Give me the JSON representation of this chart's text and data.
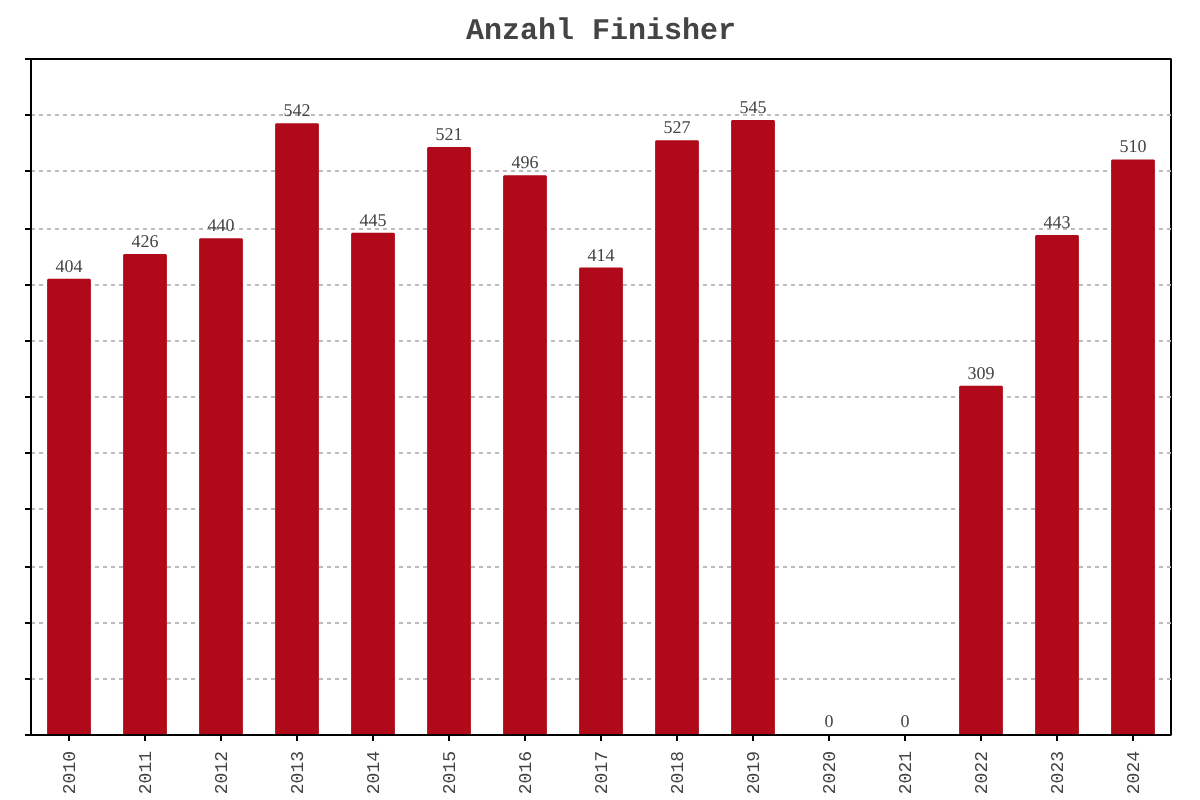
{
  "chart_data": {
    "type": "bar",
    "title": "Anzahl Finisher",
    "categories": [
      "2010",
      "2011",
      "2012",
      "2013",
      "2014",
      "2015",
      "2016",
      "2017",
      "2018",
      "2019",
      "2020",
      "2021",
      "2022",
      "2023",
      "2024"
    ],
    "values": [
      404,
      426,
      440,
      542,
      445,
      521,
      496,
      414,
      527,
      545,
      0,
      0,
      309,
      443,
      510
    ],
    "color": "#b00a1a",
    "data_labels": true,
    "ylim": [
      0,
      600
    ],
    "yticks": [
      {
        "value": 0,
        "label": null
      },
      {
        "value": 50,
        "label": null
      },
      {
        "value": 100,
        "label": null
      },
      {
        "value": 150,
        "label": null
      },
      {
        "value": 200,
        "label": null
      },
      {
        "value": 250,
        "label": null
      },
      {
        "value": 300,
        "label": null
      },
      {
        "value": 350,
        "label": null
      },
      {
        "value": 400,
        "label": null
      },
      {
        "value": 450,
        "label": null
      },
      {
        "value": 500,
        "label": null
      },
      {
        "value": 550,
        "label": null
      },
      {
        "value": 600,
        "label": null
      }
    ],
    "tick_labels": "x",
    "grid": "y"
  }
}
